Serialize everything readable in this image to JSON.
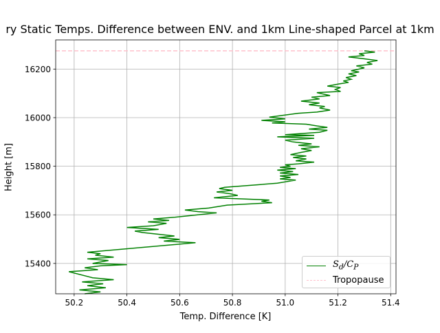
{
  "chart_data": {
    "type": "line",
    "title": "ry Static Temps. Difference between ENV. and 1km Line-shaped Parcel at 1km",
    "xlabel": "Temp. Difference [K]",
    "ylabel": "Height [m]",
    "xlim": [
      50.13,
      51.42
    ],
    "ylim": [
      15275,
      16320
    ],
    "xticks": [
      50.2,
      50.4,
      50.6,
      50.8,
      51.0,
      51.2,
      51.4
    ],
    "xtick_labels": [
      "50.2",
      "50.4",
      "50.6",
      "50.8",
      "51.0",
      "51.2",
      "51.4"
    ],
    "yticks": [
      15400,
      15600,
      15800,
      16000,
      16200
    ],
    "ytick_labels": [
      "15400",
      "15600",
      "15800",
      "16000",
      "16200"
    ],
    "grid": true,
    "legend_placement": "lower-right",
    "series": [
      {
        "name": "S_d/C_P",
        "legend_label_main": "S",
        "legend_label_sub1": "d",
        "legend_label_slash": "/C",
        "legend_label_sub2": "P",
        "color": "#008000",
        "style": "solid",
        "points": [
          [
            50.24,
            15275
          ],
          [
            50.3,
            15283
          ],
          [
            50.22,
            15291
          ],
          [
            50.32,
            15300
          ],
          [
            50.25,
            15308
          ],
          [
            50.31,
            15316
          ],
          [
            50.23,
            15324
          ],
          [
            50.35,
            15333
          ],
          [
            50.27,
            15341
          ],
          [
            50.18,
            15366
          ],
          [
            50.29,
            15374
          ],
          [
            50.24,
            15382
          ],
          [
            50.3,
            15390
          ],
          [
            50.4,
            15395
          ],
          [
            50.27,
            15400
          ],
          [
            50.33,
            15412
          ],
          [
            50.25,
            15419
          ],
          [
            50.35,
            15426
          ],
          [
            50.28,
            15434
          ],
          [
            50.3,
            15440
          ],
          [
            50.25,
            15446
          ],
          [
            50.66,
            15485
          ],
          [
            50.54,
            15492
          ],
          [
            50.6,
            15499
          ],
          [
            50.52,
            15506
          ],
          [
            50.58,
            15513
          ],
          [
            50.46,
            15527
          ],
          [
            50.43,
            15533
          ],
          [
            50.52,
            15540
          ],
          [
            50.4,
            15548
          ],
          [
            50.5,
            15555
          ],
          [
            50.55,
            15565
          ],
          [
            50.48,
            15571
          ],
          [
            50.56,
            15577
          ],
          [
            50.5,
            15583
          ],
          [
            50.58,
            15590
          ],
          [
            50.74,
            15608
          ],
          [
            50.67,
            15613
          ],
          [
            50.62,
            15620
          ],
          [
            50.71,
            15628
          ],
          [
            50.78,
            15640
          ],
          [
            50.95,
            15650
          ],
          [
            50.91,
            15656
          ],
          [
            50.94,
            15661
          ],
          [
            50.73,
            15670
          ],
          [
            50.82,
            15680
          ],
          [
            50.79,
            15687
          ],
          [
            50.74,
            15694
          ],
          [
            50.8,
            15701
          ],
          [
            50.75,
            15708
          ],
          [
            50.77,
            15713
          ],
          [
            50.97,
            15730
          ],
          [
            51.04,
            15743
          ],
          [
            50.98,
            15748
          ],
          [
            51.02,
            15754
          ],
          [
            50.98,
            15760
          ],
          [
            51.05,
            15766
          ],
          [
            50.98,
            15772
          ],
          [
            51.03,
            15778
          ],
          [
            50.97,
            15784
          ],
          [
            51.04,
            15790
          ],
          [
            50.98,
            15795
          ],
          [
            51.02,
            15800
          ],
          [
            51.0,
            15806
          ],
          [
            51.05,
            15810
          ],
          [
            51.11,
            15817
          ],
          [
            51.04,
            15822
          ],
          [
            51.08,
            15830
          ],
          [
            51.03,
            15836
          ],
          [
            51.08,
            15842
          ],
          [
            51.02,
            15848
          ],
          [
            51.06,
            15857
          ],
          [
            51.1,
            15865
          ],
          [
            51.06,
            15872
          ],
          [
            51.13,
            15880
          ],
          [
            51.05,
            15886
          ],
          [
            51.1,
            15892
          ],
          [
            51.03,
            15900
          ],
          [
            51.0,
            15907
          ],
          [
            51.11,
            15915
          ],
          [
            50.97,
            15921
          ],
          [
            51.11,
            15927
          ],
          [
            51.0,
            15930
          ],
          [
            51.13,
            15940
          ],
          [
            51.16,
            15948
          ],
          [
            51.09,
            15953
          ],
          [
            51.16,
            15960
          ],
          [
            51.12,
            15966
          ],
          [
            51.08,
            15973
          ],
          [
            50.95,
            15978
          ],
          [
            51.0,
            15983
          ],
          [
            50.91,
            15989
          ],
          [
            51.0,
            15995
          ],
          [
            50.94,
            16002
          ],
          [
            51.05,
            16018
          ],
          [
            51.12,
            16023
          ],
          [
            51.17,
            16031
          ],
          [
            51.13,
            16040
          ],
          [
            51.15,
            16046
          ],
          [
            51.09,
            16053
          ],
          [
            51.13,
            16060
          ],
          [
            51.06,
            16068
          ],
          [
            51.13,
            16077
          ],
          [
            51.1,
            16084
          ],
          [
            51.17,
            16091
          ],
          [
            51.14,
            16098
          ],
          [
            51.12,
            16103
          ],
          [
            51.21,
            16108
          ],
          [
            51.19,
            16116
          ],
          [
            51.21,
            16124
          ],
          [
            51.16,
            16130
          ],
          [
            51.2,
            16138
          ],
          [
            51.24,
            16145
          ],
          [
            51.22,
            16151
          ],
          [
            51.25,
            16158
          ],
          [
            51.23,
            16165
          ],
          [
            51.27,
            16173
          ],
          [
            51.24,
            16180
          ],
          [
            51.28,
            16188
          ],
          [
            51.25,
            16193
          ],
          [
            51.28,
            16200
          ],
          [
            51.3,
            16205
          ],
          [
            51.27,
            16213
          ],
          [
            51.33,
            16220
          ],
          [
            51.31,
            16227
          ],
          [
            51.35,
            16235
          ],
          [
            51.3,
            16242
          ],
          [
            51.24,
            16250
          ],
          [
            51.3,
            16256
          ],
          [
            51.28,
            16263
          ],
          [
            51.34,
            16270
          ],
          [
            51.3,
            16275
          ]
        ]
      },
      {
        "name": "Tropopause",
        "legend_label": "Tropopause",
        "color": "#ffc0cb",
        "style": "dashed",
        "y": 16275
      }
    ]
  }
}
